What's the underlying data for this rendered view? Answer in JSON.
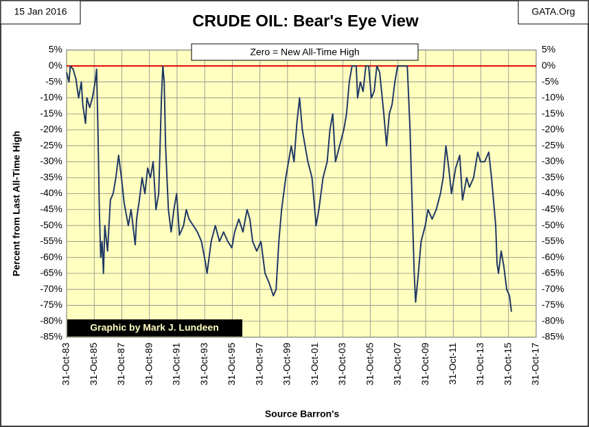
{
  "chart_data": {
    "type": "line",
    "title": "CRUDE OIL:  Bear's Eye View",
    "date_label": "15 Jan 2016",
    "source_site": "GATA.Org",
    "annotation": "Zero = New All-Time High",
    "credit": "Graphic by Mark J. Lundeen",
    "xlabel": "Source Barron's",
    "ylabel": "Percent  from Last  All-Time  High",
    "xlim": [
      1983.83,
      2017.83
    ],
    "xticks": [
      {
        "value": 1983.83,
        "label": "31-Oct-83"
      },
      {
        "value": 1985.83,
        "label": "31-Oct-85"
      },
      {
        "value": 1987.83,
        "label": "31-Oct-87"
      },
      {
        "value": 1989.83,
        "label": "31-Oct-89"
      },
      {
        "value": 1991.83,
        "label": "31-Oct-91"
      },
      {
        "value": 1993.83,
        "label": "31-Oct-93"
      },
      {
        "value": 1995.83,
        "label": "31-Oct-95"
      },
      {
        "value": 1997.83,
        "label": "31-Oct-97"
      },
      {
        "value": 1999.83,
        "label": "31-Oct-99"
      },
      {
        "value": 2001.83,
        "label": "31-Oct-01"
      },
      {
        "value": 2003.83,
        "label": "31-Oct-03"
      },
      {
        "value": 2005.83,
        "label": "31-Oct-05"
      },
      {
        "value": 2007.83,
        "label": "31-Oct-07"
      },
      {
        "value": 2009.83,
        "label": "31-Oct-09"
      },
      {
        "value": 2011.83,
        "label": "31-Oct-11"
      },
      {
        "value": 2013.83,
        "label": "31-Oct-13"
      },
      {
        "value": 2015.83,
        "label": "31-Oct-15"
      },
      {
        "value": 2017.83,
        "label": "31-Oct-17"
      }
    ],
    "ylim": [
      5,
      -85
    ],
    "yticks": [
      {
        "value": 5,
        "label": "5%"
      },
      {
        "value": 0,
        "label": "0%"
      },
      {
        "value": -5,
        "label": "-5%"
      },
      {
        "value": -10,
        "label": "-10%"
      },
      {
        "value": -15,
        "label": "-15%"
      },
      {
        "value": -20,
        "label": "-20%"
      },
      {
        "value": -25,
        "label": "-25%"
      },
      {
        "value": -30,
        "label": "-30%"
      },
      {
        "value": -35,
        "label": "-35%"
      },
      {
        "value": -40,
        "label": "-40%"
      },
      {
        "value": -45,
        "label": "-45%"
      },
      {
        "value": -50,
        "label": "-50%"
      },
      {
        "value": -55,
        "label": "-55%"
      },
      {
        "value": -60,
        "label": "-60%"
      },
      {
        "value": -65,
        "label": "-65%"
      },
      {
        "value": -70,
        "label": "-70%"
      },
      {
        "value": -75,
        "label": "-75%"
      },
      {
        "value": -80,
        "label": "-80%"
      },
      {
        "value": -85,
        "label": "-85%"
      }
    ],
    "grid": true,
    "background": "#ffffc0",
    "reference_line": {
      "value": 0,
      "color": "#e00000"
    },
    "x": [
      1983.83,
      1984.0,
      1984.1,
      1984.3,
      1984.5,
      1984.7,
      1984.9,
      1985.0,
      1985.2,
      1985.3,
      1985.5,
      1985.7,
      1985.9,
      1986.0,
      1986.1,
      1986.2,
      1986.3,
      1986.4,
      1986.5,
      1986.6,
      1986.8,
      1987.0,
      1987.2,
      1987.4,
      1987.6,
      1987.8,
      1988.0,
      1988.3,
      1988.5,
      1988.8,
      1988.9,
      1989.1,
      1989.3,
      1989.5,
      1989.7,
      1989.9,
      1990.1,
      1990.3,
      1990.5,
      1990.7,
      1990.8,
      1990.9,
      1991.0,
      1991.2,
      1991.4,
      1991.6,
      1991.8,
      1992.0,
      1992.3,
      1992.5,
      1992.7,
      1993.0,
      1993.3,
      1993.6,
      1993.9,
      1994.0,
      1994.3,
      1994.6,
      1994.9,
      1995.2,
      1995.5,
      1995.8,
      1996.0,
      1996.3,
      1996.6,
      1996.9,
      1997.1,
      1997.3,
      1997.6,
      1997.9,
      1998.2,
      1998.5,
      1998.8,
      1999.0,
      1999.2,
      1999.4,
      1999.7,
      1999.9,
      2000.1,
      2000.3,
      2000.5,
      2000.7,
      2000.9,
      2001.1,
      2001.3,
      2001.6,
      2001.9,
      2002.1,
      2002.4,
      2002.7,
      2002.9,
      2003.1,
      2003.3,
      2003.6,
      2003.9,
      2004.1,
      2004.3,
      2004.5,
      2004.8,
      2004.9,
      2005.1,
      2005.3,
      2005.5,
      2005.7,
      2005.9,
      2006.1,
      2006.3,
      2006.5,
      2006.8,
      2007.0,
      2007.2,
      2007.4,
      2007.6,
      2007.8,
      2008.0,
      2008.3,
      2008.5,
      2008.7,
      2008.9,
      2009.0,
      2009.1,
      2009.3,
      2009.5,
      2009.8,
      2010.0,
      2010.3,
      2010.6,
      2010.9,
      2011.1,
      2011.3,
      2011.5,
      2011.7,
      2012.0,
      2012.3,
      2012.5,
      2012.8,
      2013.0,
      2013.3,
      2013.6,
      2013.8,
      2014.1,
      2014.4,
      2014.6,
      2014.9,
      2015.0,
      2015.1,
      2015.3,
      2015.5,
      2015.7,
      2015.9,
      2016.04
    ],
    "series": [
      {
        "color": "#1f3864",
        "values": [
          -2,
          -5,
          0,
          -1,
          -4,
          -10,
          -5,
          -12,
          -18,
          -10,
          -13,
          -10,
          -5,
          -1,
          -20,
          -45,
          -60,
          -55,
          -65,
          -50,
          -58,
          -42,
          -40,
          -35,
          -28,
          -35,
          -43,
          -50,
          -45,
          -56,
          -48,
          -42,
          -35,
          -40,
          -32,
          -35,
          -30,
          -45,
          -40,
          -10,
          0,
          -5,
          -25,
          -45,
          -52,
          -45,
          -40,
          -53,
          -50,
          -45,
          -48,
          -50,
          -52,
          -55,
          -62,
          -65,
          -55,
          -50,
          -55,
          -52,
          -55,
          -57,
          -52,
          -48,
          -52,
          -45,
          -48,
          -55,
          -58,
          -55,
          -65,
          -68,
          -72,
          -70,
          -55,
          -45,
          -35,
          -30,
          -25,
          -30,
          -18,
          -10,
          -20,
          -25,
          -30,
          -35,
          -50,
          -45,
          -35,
          -30,
          -20,
          -15,
          -30,
          -25,
          -20,
          -15,
          -5,
          0,
          0,
          -10,
          -5,
          -8,
          0,
          0,
          -10,
          -8,
          0,
          -2,
          -15,
          -25,
          -15,
          -12,
          -5,
          0,
          0,
          0,
          0,
          -20,
          -50,
          -65,
          -74,
          -65,
          -55,
          -50,
          -45,
          -48,
          -45,
          -40,
          -35,
          -25,
          -32,
          -40,
          -32,
          -28,
          -42,
          -35,
          -38,
          -35,
          -27,
          -30,
          -30,
          -27,
          -35,
          -50,
          -62,
          -65,
          -58,
          -63,
          -70,
          -72,
          -77
        ]
      }
    ]
  }
}
